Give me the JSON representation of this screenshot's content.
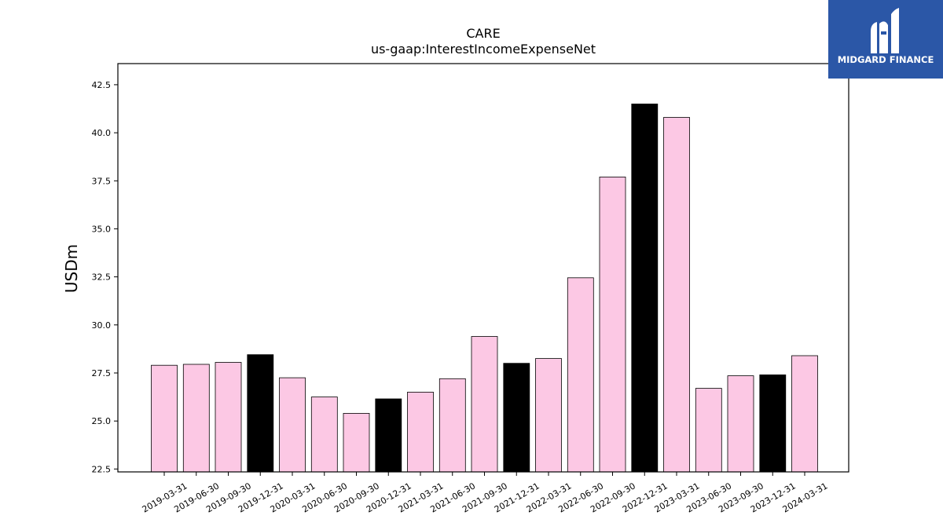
{
  "chart_data": {
    "type": "bar",
    "title": "CARE",
    "subtitle": "us-gaap:InterestIncomeExpenseNet",
    "xlabel": "",
    "ylabel": "USDm",
    "ylim": [
      22.35,
      43.6
    ],
    "yticks": [
      "22.5",
      "25.0",
      "27.5",
      "30.0",
      "32.5",
      "35.0",
      "37.5",
      "40.0",
      "42.5"
    ],
    "categories": [
      "2019-03-31",
      "2019-06-30",
      "2019-09-30",
      "2019-12-31",
      "2020-03-31",
      "2020-06-30",
      "2020-09-30",
      "2020-12-31",
      "2021-03-31",
      "2021-06-30",
      "2021-09-30",
      "2021-12-31",
      "2022-03-31",
      "2022-06-30",
      "2022-09-30",
      "2022-12-31",
      "2023-03-31",
      "2023-06-30",
      "2023-09-30",
      "2023-12-31",
      "2024-03-31"
    ],
    "values": [
      27.9,
      27.95,
      28.05,
      28.45,
      27.25,
      26.25,
      25.4,
      26.15,
      26.5,
      27.2,
      29.4,
      28.0,
      28.25,
      32.45,
      37.7,
      41.5,
      40.8,
      26.7,
      27.35,
      27.4,
      28.4
    ],
    "highlight": [
      false,
      false,
      false,
      true,
      false,
      false,
      false,
      true,
      false,
      false,
      false,
      true,
      false,
      false,
      false,
      true,
      false,
      false,
      false,
      true,
      false
    ],
    "colors": {
      "normal": "#fcc8e4",
      "highlight": "#000000",
      "edge": "#000000"
    },
    "grid": false,
    "legend": "none"
  },
  "logo": {
    "text": "MIDGARD FINANCE",
    "icon": "midgard-logo-icon",
    "background": "#2b57a7"
  }
}
